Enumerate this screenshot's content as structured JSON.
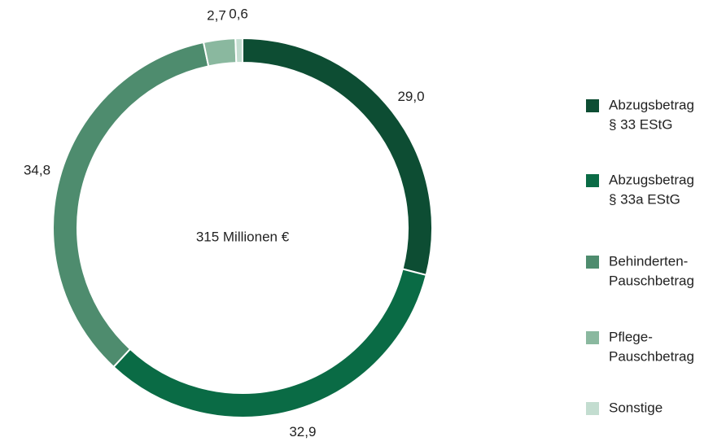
{
  "chart_data": {
    "type": "donut",
    "center_label": "315 Millionen €",
    "categories": [
      [
        "Abzugsbetrag",
        "§ 33 EStG"
      ],
      [
        "Abzugsbetrag",
        "§ 33a EStG"
      ],
      [
        "Behinderten-",
        "Pauschbetrag"
      ],
      [
        "Pflege-",
        "Pauschbetrag"
      ],
      [
        "Sonstige"
      ]
    ],
    "values": [
      29.0,
      32.9,
      34.8,
      2.7,
      0.6
    ],
    "value_labels": [
      "29,0",
      "32,9",
      "34,8",
      "2,7",
      "0,6"
    ],
    "colors": [
      "#0d4d33",
      "#0a6b45",
      "#4e8c6e",
      "#8ab89f",
      "#c3ddd0"
    ],
    "legend": "right"
  }
}
